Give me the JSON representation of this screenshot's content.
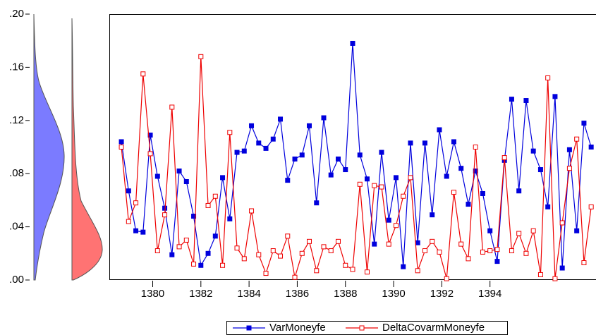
{
  "chart_data": {
    "type": "line",
    "x": [
      1378.7,
      1379.0,
      1379.3,
      1379.6,
      1379.9,
      1380.2,
      1380.5,
      1380.8,
      1381.1,
      1381.4,
      1381.7,
      1382.0,
      1382.3,
      1382.6,
      1382.9,
      1383.2,
      1383.5,
      1383.8,
      1384.1,
      1384.4,
      1384.7,
      1385.0,
      1385.3,
      1385.6,
      1385.9,
      1386.2,
      1386.5,
      1386.8,
      1387.1,
      1387.4,
      1387.7,
      1388.0,
      1388.3,
      1388.6,
      1388.9,
      1389.2,
      1389.5,
      1389.8,
      1390.1,
      1390.4,
      1390.7,
      1391.0,
      1391.3,
      1391.6,
      1391.9,
      1392.2,
      1392.5,
      1392.8,
      1393.1,
      1393.4,
      1393.7,
      1394.0,
      1394.3,
      1394.6,
      1394.9,
      1395.2,
      1395.5,
      1395.8,
      1396.1,
      1396.4,
      1396.7,
      1397.0,
      1397.3,
      1397.6,
      1397.9,
      1398.2
    ],
    "series": [
      {
        "name": "VarMoneyfe",
        "color": "#0000dd",
        "marker": "filled-square",
        "values": [
          0.104,
          0.067,
          0.037,
          0.036,
          0.109,
          0.078,
          0.054,
          0.019,
          0.082,
          0.074,
          0.048,
          0.011,
          0.02,
          0.033,
          0.077,
          0.046,
          0.096,
          0.097,
          0.116,
          0.103,
          0.099,
          0.106,
          0.121,
          0.075,
          0.091,
          0.094,
          0.116,
          0.058,
          0.122,
          0.079,
          0.091,
          0.083,
          0.178,
          0.094,
          0.076,
          0.027,
          0.096,
          0.045,
          0.077,
          0.01,
          0.103,
          0.028,
          0.103,
          0.049,
          0.113,
          0.078,
          0.104,
          0.084,
          0.057,
          0.082,
          0.065,
          0.037,
          0.014,
          0.09,
          0.136,
          0.067,
          0.135,
          0.097,
          0.083,
          0.055,
          0.138,
          0.009,
          0.098,
          0.037,
          0.118,
          0.1
        ]
      },
      {
        "name": "DeltaCovarmMoneyfe",
        "color": "#ee0000",
        "marker": "open-square",
        "values": [
          0.1,
          0.044,
          0.058,
          0.155,
          0.095,
          0.022,
          0.049,
          0.13,
          0.025,
          0.03,
          0.012,
          0.168,
          0.056,
          0.063,
          0.011,
          0.111,
          0.024,
          0.016,
          0.052,
          0.019,
          0.005,
          0.022,
          0.018,
          0.033,
          0.002,
          0.02,
          0.029,
          0.007,
          0.025,
          0.022,
          0.029,
          0.011,
          0.008,
          0.072,
          0.006,
          0.071,
          0.07,
          0.027,
          0.041,
          0.063,
          0.077,
          0.007,
          0.022,
          0.029,
          0.021,
          0.001,
          0.066,
          0.027,
          0.016,
          0.1,
          0.021,
          0.022,
          0.023,
          0.092,
          0.022,
          0.035,
          0.02,
          0.037,
          0.004,
          0.152,
          0.001,
          0.043,
          0.084,
          0.106,
          0.013,
          0.055
        ]
      }
    ],
    "xlim": [
      1378.2,
      1398.4
    ],
    "xticks": [
      1380,
      1382,
      1384,
      1386,
      1388,
      1390,
      1392,
      1394
    ],
    "ylim": [
      0,
      0.2
    ],
    "yticks": [
      {
        "value": 0,
        "label": ".00"
      },
      {
        "value": 0.04,
        "label": ".04"
      },
      {
        "value": 0.08,
        "label": ".08"
      },
      {
        "value": 0.12,
        "label": ".12"
      },
      {
        "value": 0.16,
        "label": ".16"
      },
      {
        "value": 0.2,
        "label": ".20"
      }
    ],
    "grid": false
  }
}
